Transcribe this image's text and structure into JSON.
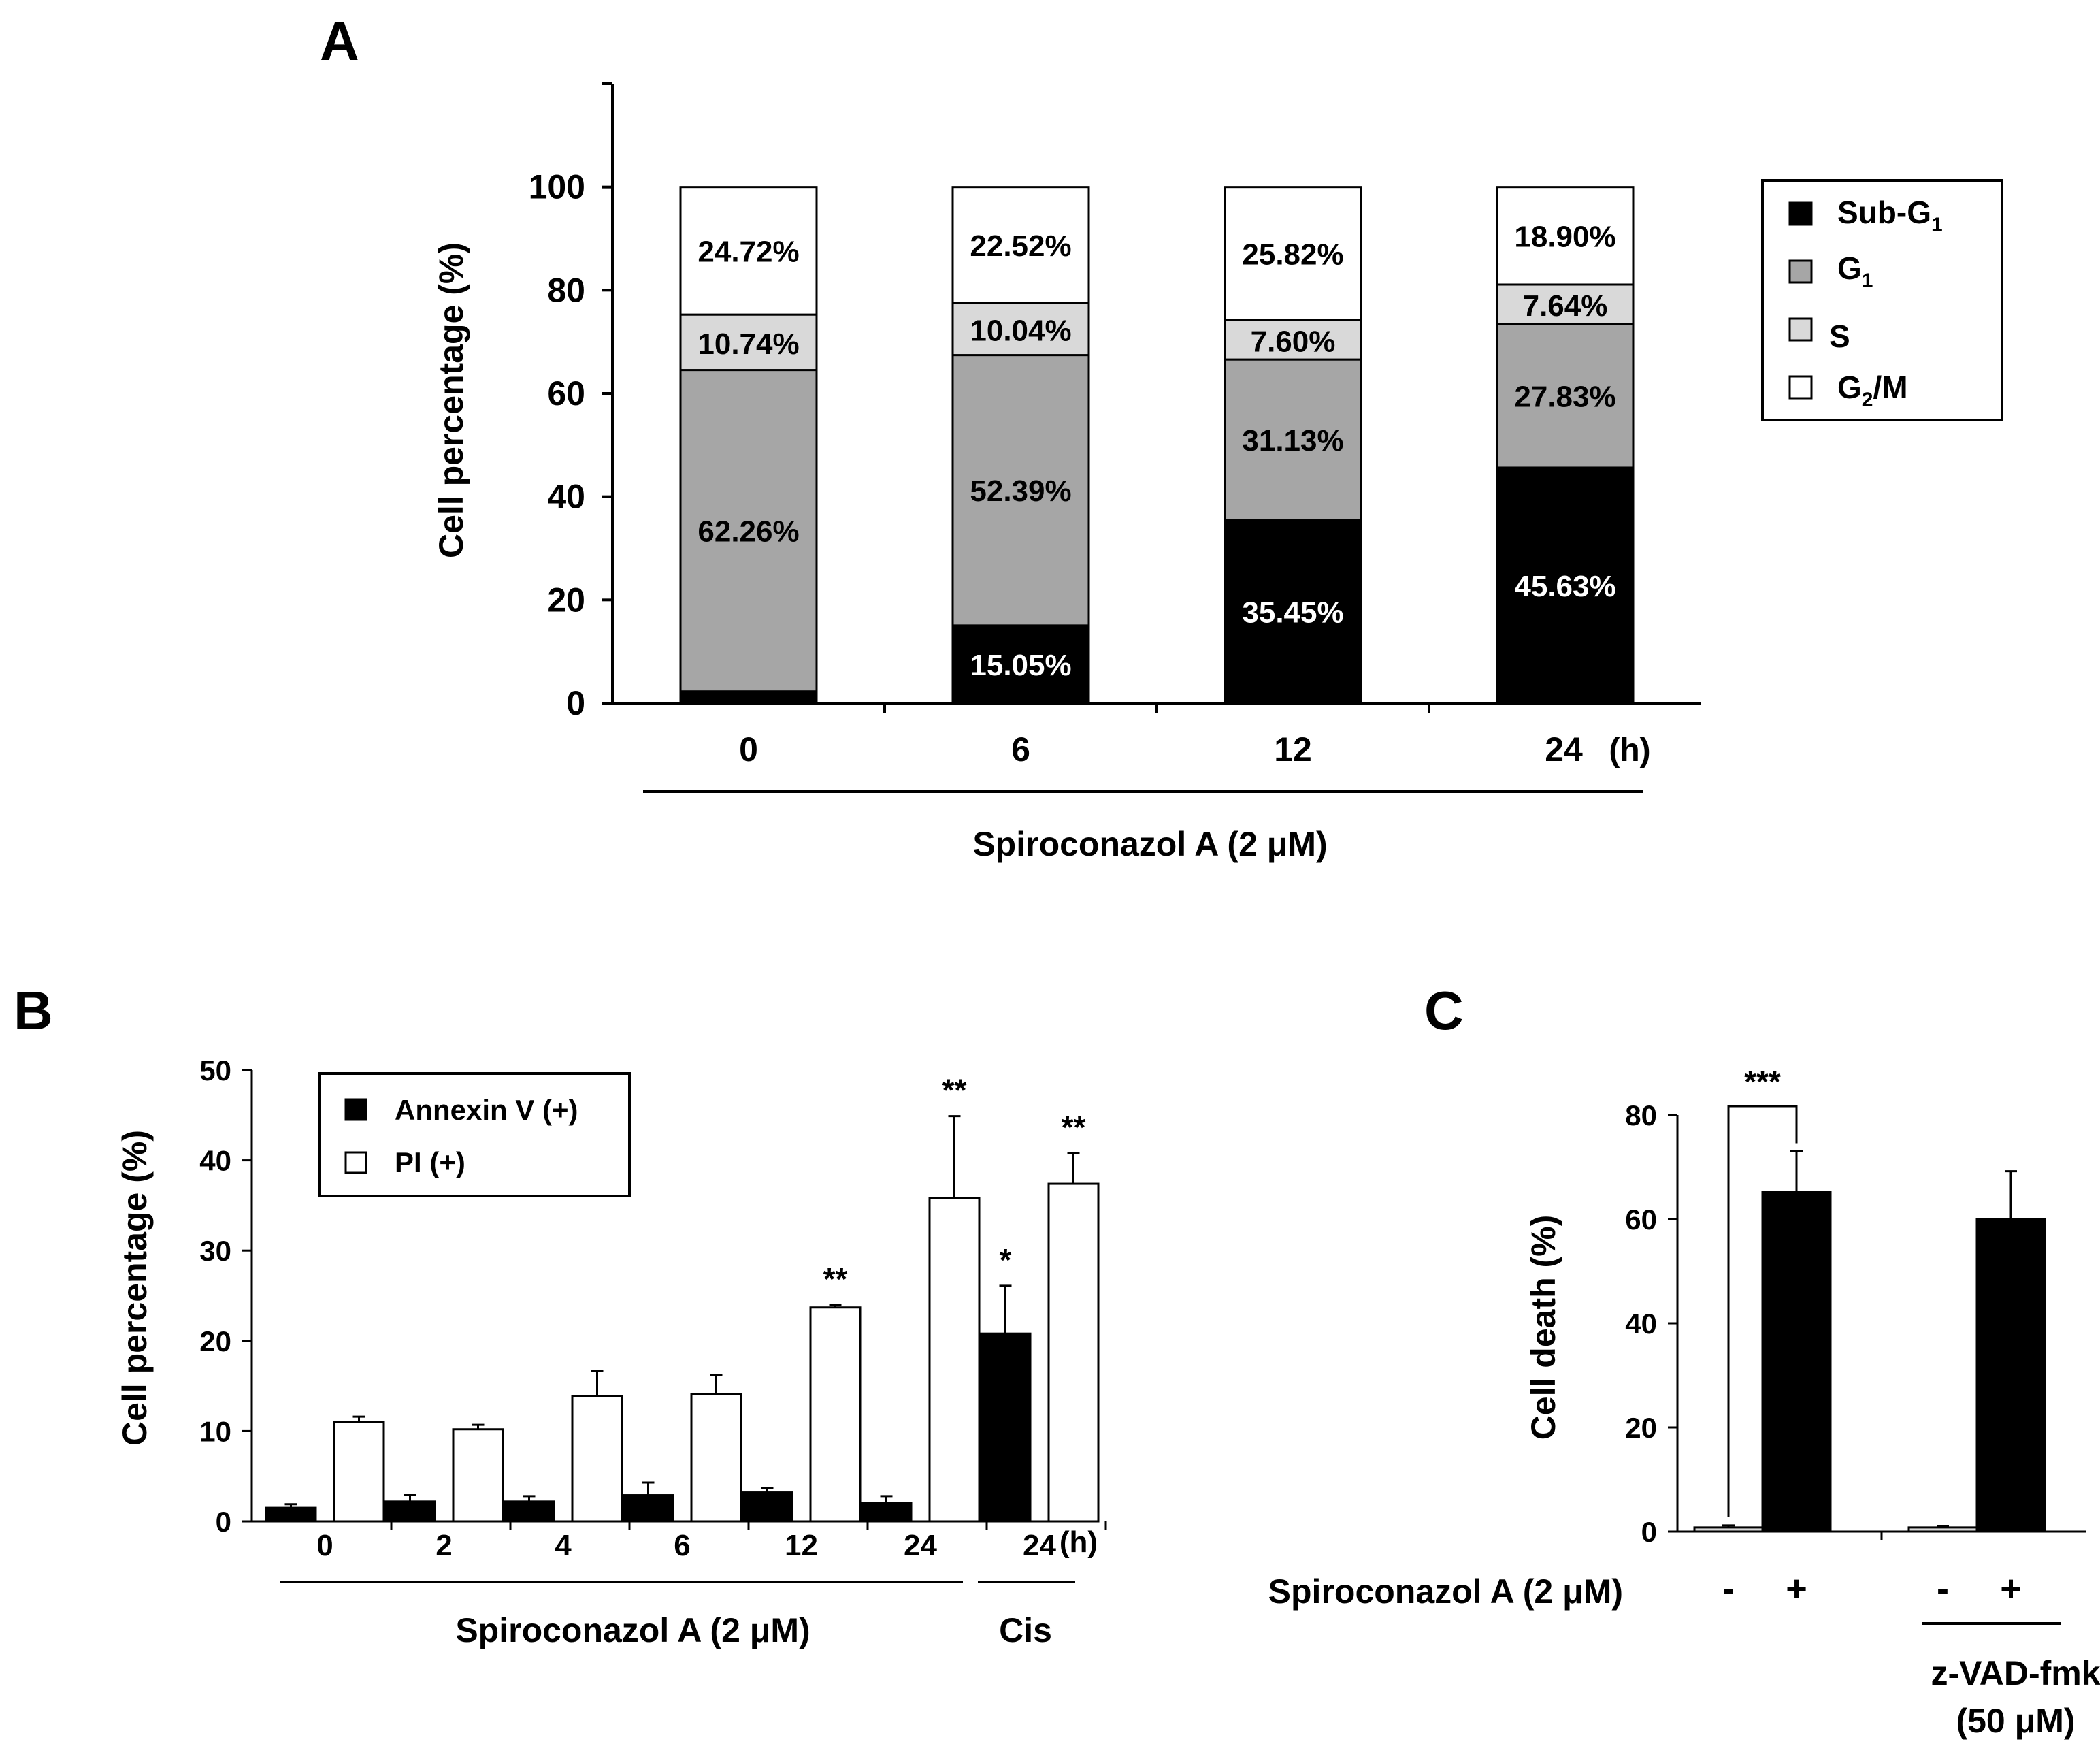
{
  "colors": {
    "sub_g1": "#000000",
    "g1": "#a6a6a6",
    "s": "#d9d9d9",
    "g2m": "#ffffff",
    "annexin": "#000000",
    "pi": "#ffffff",
    "control_bar": "#d9d9d9",
    "treated_bar": "#000000"
  },
  "panel_a": {
    "letter": "A",
    "x_unit": "(h)",
    "group_label": "Spiroconazol A (2 μM)",
    "legend": {
      "sub_g1_main": "Sub-G",
      "sub_g1_sub": "1",
      "g1_main": "G",
      "g1_sub": "1",
      "s": "S",
      "g2m_main": "G",
      "g2m_sub": "2",
      "g2m_rest": "/M"
    }
  },
  "panel_b": {
    "letter": "B",
    "x_unit": "(h)",
    "group_label": "Spiroconazol A (2 μM)",
    "cis_label": "Cis",
    "legend": {
      "annexin": "Annexin V (+)",
      "pi": "PI (+)"
    }
  },
  "panel_c": {
    "letter": "C",
    "row_label": "Spiroconazol A (2 μM)",
    "zvad_line1": "z-VAD-fmk",
    "zvad_line2": "(50 μM)"
  },
  "chart_data": [
    {
      "panel": "A",
      "type": "bar",
      "stacked": true,
      "categories": [
        "0",
        "6",
        "12",
        "24"
      ],
      "series": [
        {
          "name": "Sub-G1",
          "values": [
            2.28,
            15.05,
            35.45,
            45.63
          ],
          "labels": [
            "",
            "15.05%",
            "35.45%",
            "45.63%"
          ]
        },
        {
          "name": "G1",
          "values": [
            62.26,
            52.39,
            31.13,
            27.83
          ],
          "labels": [
            "62.26%",
            "52.39%",
            "31.13%",
            "27.83%"
          ]
        },
        {
          "name": "S",
          "values": [
            10.74,
            10.04,
            7.6,
            7.64
          ],
          "labels": [
            "10.74%",
            "10.04%",
            "7.60%",
            "7.64%"
          ]
        },
        {
          "name": "G2/M",
          "values": [
            24.72,
            22.52,
            25.82,
            18.9
          ],
          "labels": [
            "24.72%",
            "22.52%",
            "25.82%",
            "18.90%"
          ]
        }
      ],
      "ylabel": "Cell percentage (%)",
      "ylim": [
        0,
        120
      ],
      "yticks": [
        0,
        20,
        40,
        60,
        80,
        100
      ],
      "legend_position": "right"
    },
    {
      "panel": "B",
      "type": "bar",
      "categories": [
        "0",
        "2",
        "4",
        "6",
        "12",
        "24",
        "24"
      ],
      "series": [
        {
          "name": "Annexin V (+)",
          "values": [
            1.5,
            2.2,
            2.2,
            2.9,
            3.2,
            2.0,
            20.8
          ],
          "errors": [
            0.4,
            0.7,
            0.6,
            1.4,
            0.5,
            0.8,
            5.3
          ],
          "sig": [
            "",
            "",
            "",
            "",
            "",
            "",
            "*"
          ]
        },
        {
          "name": "PI (+)",
          "values": [
            11.0,
            10.2,
            13.9,
            14.1,
            23.7,
            35.8,
            37.4
          ],
          "errors": [
            0.6,
            0.5,
            2.8,
            2.1,
            0.3,
            9.1,
            3.4
          ],
          "sig": [
            "",
            "",
            "",
            "",
            "**",
            "**",
            "**"
          ]
        }
      ],
      "ylabel": "Cell percentage (%)",
      "ylim": [
        0,
        50
      ],
      "yticks": [
        0,
        10,
        20,
        30,
        40,
        50
      ],
      "legend_position": "top-left"
    },
    {
      "panel": "C",
      "type": "bar",
      "categories": [
        "-",
        "+",
        "-",
        "+"
      ],
      "values": [
        0.8,
        65.2,
        0.8,
        60.0
      ],
      "errors": [
        0.4,
        7.8,
        0.3,
        9.2
      ],
      "significance": "***",
      "ylabel": "Cell death (%)",
      "ylim": [
        0,
        80
      ],
      "yticks": [
        0,
        20,
        40,
        60,
        80
      ]
    }
  ]
}
